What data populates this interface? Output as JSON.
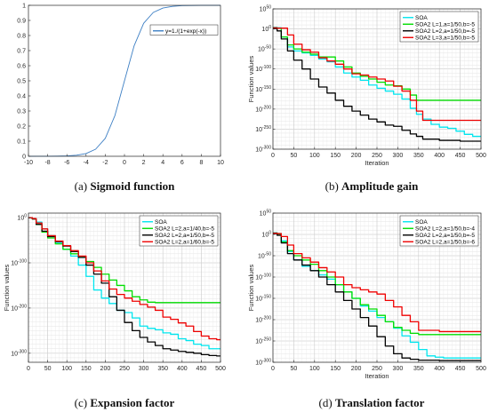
{
  "chart_data": [
    {
      "id": "a",
      "type": "line",
      "caption_letter": "(a)",
      "caption_title": "Sigmoid function",
      "xlim": [
        -10,
        10
      ],
      "ylim": [
        0,
        1
      ],
      "xticks": [
        -10,
        -8,
        -6,
        -4,
        -2,
        0,
        2,
        4,
        6,
        8,
        10
      ],
      "yticks": [
        0,
        0.1,
        0.2,
        0.3,
        0.4,
        0.5,
        0.6,
        0.7,
        0.8,
        0.9,
        1
      ],
      "xlabel": "",
      "ylabel": "",
      "grid": false,
      "legend_position": "top-right",
      "series": [
        {
          "name": "y=1./(1+exp(-x))",
          "color": "#3d7fc4",
          "x": [
            -10,
            -9,
            -8,
            -7,
            -6,
            -5,
            -4,
            -3,
            -2,
            -1,
            0,
            1,
            2,
            3,
            4,
            5,
            6,
            7,
            8,
            9,
            10
          ],
          "y": [
            5e-05,
            0.0001,
            0.0003,
            0.0009,
            0.0025,
            0.0067,
            0.018,
            0.047,
            0.119,
            0.269,
            0.5,
            0.731,
            0.881,
            0.953,
            0.982,
            0.993,
            0.998,
            0.999,
            1.0,
            1.0,
            1.0
          ]
        }
      ]
    },
    {
      "id": "b",
      "type": "line",
      "caption_letter": "(b)",
      "caption_title": "Amplitude gain",
      "xlim": [
        0,
        500
      ],
      "ylim_exp": [
        -300,
        50
      ],
      "yscale": "log",
      "xticks": [
        0,
        50,
        100,
        150,
        200,
        250,
        300,
        350,
        400,
        450,
        500
      ],
      "ytick_exps": [
        50,
        0,
        -50,
        -100,
        -150,
        -200,
        -250,
        -300
      ],
      "xlabel": "Iteration",
      "ylabel": "Function values",
      "grid": true,
      "legend_position": "top-right",
      "series": [
        {
          "name": "SOA",
          "color": "#00e5ee",
          "x": [
            0,
            10,
            20,
            35,
            50,
            70,
            90,
            110,
            130,
            150,
            170,
            190,
            210,
            230,
            250,
            270,
            290,
            310,
            330,
            345,
            360,
            380,
            400,
            420,
            440,
            460,
            480,
            500
          ],
          "y": [
            4,
            3,
            -20,
            -45,
            -55,
            -60,
            -66,
            -75,
            -82,
            -95,
            -110,
            -120,
            -128,
            -140,
            -148,
            -155,
            -163,
            -175,
            -198,
            -213,
            -225,
            -238,
            -245,
            -248,
            -255,
            -263,
            -268,
            -268
          ]
        },
        {
          "name": "SOA2 L=1,a=1/50,b=-5",
          "color": "#00dd00",
          "x": [
            0,
            10,
            20,
            35,
            50,
            70,
            90,
            110,
            130,
            150,
            170,
            190,
            210,
            230,
            250,
            270,
            290,
            310,
            330,
            345,
            360,
            400,
            450,
            500
          ],
          "y": [
            3,
            2,
            -20,
            -40,
            -50,
            -58,
            -63,
            -70,
            -70,
            -80,
            -95,
            -110,
            -118,
            -125,
            -133,
            -140,
            -142,
            -150,
            -165,
            -178,
            -178,
            -178,
            -178,
            -178
          ]
        },
        {
          "name": "SOA2 L=2,a=1/50,b=-5",
          "color": "#000000",
          "x": [
            0,
            10,
            20,
            35,
            50,
            70,
            90,
            110,
            130,
            150,
            170,
            190,
            210,
            230,
            250,
            270,
            290,
            310,
            330,
            345,
            360,
            400,
            450,
            500
          ],
          "y": [
            1,
            -5,
            -25,
            -55,
            -78,
            -100,
            -125,
            -145,
            -160,
            -178,
            -193,
            -205,
            -215,
            -225,
            -232,
            -240,
            -243,
            -253,
            -262,
            -268,
            -275,
            -278,
            -280,
            -280
          ]
        },
        {
          "name": "SOA2 L=3,a=1/50,b=-5",
          "color": "#ee0000",
          "x": [
            0,
            10,
            20,
            35,
            50,
            70,
            90,
            110,
            130,
            150,
            170,
            190,
            210,
            230,
            250,
            270,
            290,
            310,
            330,
            345,
            360,
            400,
            450,
            500
          ],
          "y": [
            3,
            2,
            2,
            -15,
            -38,
            -52,
            -58,
            -72,
            -80,
            -88,
            -100,
            -112,
            -115,
            -120,
            -125,
            -130,
            -143,
            -155,
            -178,
            -205,
            -228,
            -228,
            -228,
            -228
          ]
        }
      ]
    },
    {
      "id": "c",
      "type": "line",
      "caption_letter": "(c)",
      "caption_title": "Expansion factor",
      "xlim": [
        0,
        500
      ],
      "ylim_exp": [
        -320,
        10
      ],
      "yscale": "log",
      "xticks": [
        0,
        50,
        100,
        150,
        200,
        250,
        300,
        350,
        400,
        450,
        500
      ],
      "ytick_exps": [
        0,
        -100,
        -200,
        -300
      ],
      "xlabel": "",
      "ylabel": "Function values",
      "grid": true,
      "legend_position": "top-right",
      "series": [
        {
          "name": "SOA",
          "color": "#00e5ee",
          "x": [
            0,
            10,
            20,
            35,
            50,
            70,
            90,
            110,
            130,
            150,
            170,
            190,
            210,
            230,
            250,
            270,
            290,
            310,
            330,
            350,
            370,
            390,
            410,
            430,
            450,
            470,
            490,
            500
          ],
          "y": [
            0,
            -2,
            -10,
            -25,
            -40,
            -55,
            -70,
            -85,
            -105,
            -130,
            -160,
            -178,
            -190,
            -205,
            -210,
            -222,
            -240,
            -245,
            -248,
            -255,
            -258,
            -268,
            -272,
            -280,
            -283,
            -290,
            -290,
            -290
          ]
        },
        {
          "name": "SOA2 L=2,a=1/40,b=-5",
          "color": "#00dd00",
          "x": [
            0,
            10,
            20,
            35,
            50,
            70,
            90,
            110,
            130,
            150,
            170,
            190,
            210,
            230,
            250,
            270,
            290,
            310,
            330,
            350,
            400,
            450,
            500
          ],
          "y": [
            0,
            -3,
            -15,
            -32,
            -45,
            -58,
            -70,
            -80,
            -88,
            -97,
            -110,
            -125,
            -138,
            -150,
            -162,
            -175,
            -182,
            -187,
            -188,
            -188,
            -188,
            -188,
            -188
          ]
        },
        {
          "name": "SOA2 L=2,a=1/50,b=-5",
          "color": "#000000",
          "x": [
            0,
            10,
            20,
            35,
            50,
            70,
            90,
            110,
            130,
            150,
            170,
            190,
            210,
            230,
            250,
            270,
            290,
            310,
            330,
            350,
            370,
            390,
            410,
            430,
            450,
            470,
            490,
            500
          ],
          "y": [
            0,
            -3,
            -15,
            -30,
            -42,
            -53,
            -63,
            -75,
            -88,
            -105,
            -125,
            -145,
            -175,
            -205,
            -232,
            -250,
            -265,
            -275,
            -283,
            -290,
            -293,
            -296,
            -298,
            -300,
            -303,
            -305,
            -306,
            -306
          ]
        },
        {
          "name": "SOA2 L=2,a=1/60,b=-5",
          "color": "#ee0000",
          "x": [
            0,
            10,
            20,
            35,
            50,
            70,
            90,
            110,
            130,
            150,
            170,
            190,
            210,
            230,
            250,
            270,
            290,
            310,
            330,
            350,
            370,
            390,
            410,
            430,
            450,
            470,
            490,
            500
          ],
          "y": [
            0,
            -2,
            -12,
            -25,
            -40,
            -52,
            -62,
            -73,
            -85,
            -100,
            -118,
            -140,
            -158,
            -170,
            -178,
            -185,
            -192,
            -198,
            -205,
            -220,
            -225,
            -233,
            -240,
            -252,
            -262,
            -268,
            -270,
            -270
          ]
        }
      ]
    },
    {
      "id": "d",
      "type": "line",
      "caption_letter": "(d)",
      "caption_title": "Translation factor",
      "xlim": [
        0,
        500
      ],
      "ylim_exp": [
        -300,
        50
      ],
      "yscale": "log",
      "xticks": [
        0,
        50,
        100,
        150,
        200,
        250,
        300,
        350,
        400,
        450,
        500
      ],
      "ytick_exps": [
        50,
        0,
        -50,
        -100,
        -150,
        -200,
        -250,
        -300
      ],
      "xlabel": "Iteration",
      "ylabel": "Function values",
      "grid": true,
      "legend_position": "top-right",
      "series": [
        {
          "name": "SOA",
          "color": "#00e5ee",
          "x": [
            0,
            10,
            20,
            35,
            50,
            70,
            90,
            110,
            130,
            150,
            170,
            190,
            210,
            230,
            250,
            270,
            290,
            310,
            330,
            350,
            370,
            390,
            410,
            450,
            500
          ],
          "y": [
            4,
            2,
            -15,
            -40,
            -60,
            -75,
            -85,
            -95,
            -105,
            -118,
            -135,
            -150,
            -168,
            -180,
            -195,
            -205,
            -220,
            -238,
            -253,
            -270,
            -285,
            -288,
            -290,
            -290,
            -290
          ]
        },
        {
          "name": "SOA2 L=2,a=1/50,b=-4",
          "color": "#00dd00",
          "x": [
            0,
            10,
            20,
            35,
            50,
            70,
            90,
            110,
            130,
            150,
            170,
            190,
            210,
            230,
            250,
            270,
            290,
            310,
            330,
            350,
            400,
            450,
            500
          ],
          "y": [
            3,
            1,
            -18,
            -38,
            -50,
            -60,
            -70,
            -85,
            -100,
            -118,
            -135,
            -150,
            -165,
            -175,
            -190,
            -205,
            -218,
            -225,
            -232,
            -235,
            -235,
            -235,
            -235
          ]
        },
        {
          "name": "SOA2 L=2,a=1/50,b=-5",
          "color": "#000000",
          "x": [
            0,
            10,
            20,
            35,
            50,
            70,
            90,
            110,
            130,
            150,
            170,
            190,
            210,
            230,
            250,
            270,
            290,
            310,
            330,
            350,
            400,
            450,
            500
          ],
          "y": [
            2,
            -2,
            -20,
            -45,
            -60,
            -72,
            -85,
            -100,
            -118,
            -135,
            -155,
            -175,
            -195,
            -215,
            -240,
            -262,
            -280,
            -290,
            -293,
            -295,
            -296,
            -296,
            -296
          ]
        },
        {
          "name": "SOA2 L=2,a=1/50,b=-6",
          "color": "#ee0000",
          "x": [
            0,
            10,
            20,
            35,
            50,
            70,
            90,
            110,
            130,
            150,
            170,
            190,
            210,
            230,
            250,
            270,
            290,
            310,
            330,
            350,
            400,
            450,
            500
          ],
          "y": [
            3,
            2,
            -5,
            -25,
            -45,
            -55,
            -65,
            -78,
            -88,
            -100,
            -118,
            -125,
            -130,
            -135,
            -140,
            -155,
            -170,
            -190,
            -205,
            -225,
            -228,
            -228,
            -228
          ]
        }
      ]
    }
  ]
}
